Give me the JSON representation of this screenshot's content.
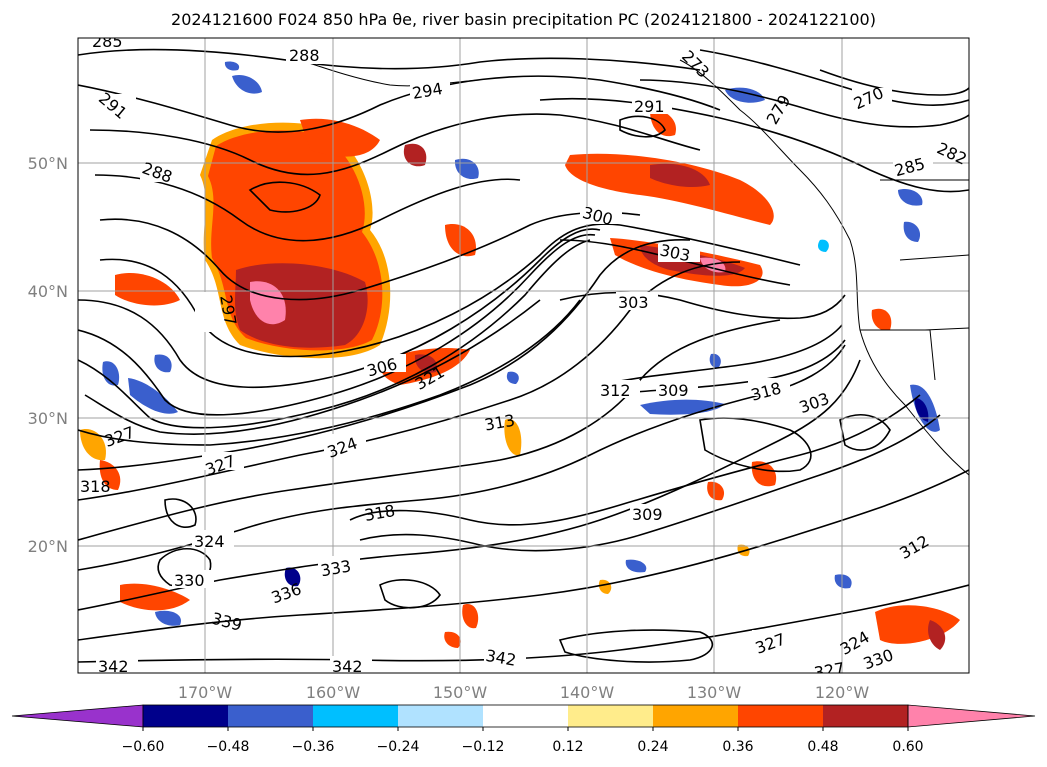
{
  "title": "2024121600 F024 850 hPa θe, river basin precipitation PC (2024121800 - 2024122100)",
  "lat_labels": [
    "50°N",
    "40°N",
    "30°N",
    "20°N"
  ],
  "lon_labels": [
    "170°W",
    "160°W",
    "150°W",
    "140°W",
    "130°W",
    "120°W"
  ],
  "contour_labels": [
    "285",
    "288",
    "291",
    "288",
    "294",
    "291",
    "273",
    "270",
    "279",
    "285",
    "282",
    "297",
    "300",
    "303",
    "303",
    "306",
    "321",
    "312",
    "309",
    "318",
    "303",
    "313",
    "324",
    "327",
    "327",
    "318",
    "324",
    "330",
    "336",
    "333",
    "339",
    "342",
    "342",
    "342",
    "318",
    "309",
    "312",
    "327",
    "324",
    "330",
    "327"
  ],
  "colorbar": {
    "ticks": [
      "−0.60",
      "−0.48",
      "−0.36",
      "−0.24",
      "−0.12",
      "0.12",
      "0.24",
      "0.36",
      "0.48",
      "0.60"
    ],
    "colors": [
      "#9932cc",
      "#00008b",
      "#3a5fcd",
      "#00bfff",
      "#b0e2ff",
      "#ffffff",
      "#ffec8b",
      "#ffa500",
      "#ff4500",
      "#b22222",
      "#ff82ab"
    ]
  }
}
